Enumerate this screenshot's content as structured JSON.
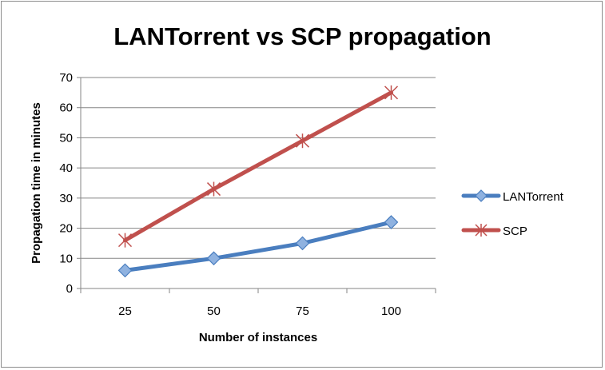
{
  "chart_data": {
    "type": "line",
    "title": "LANTorrent vs SCP propagation",
    "xlabel": "Number of instances",
    "ylabel": "Propagation time in minutes",
    "categories": [
      "25",
      "50",
      "75",
      "100"
    ],
    "ylim": [
      0,
      70
    ],
    "yticks": [
      0,
      10,
      20,
      30,
      40,
      50,
      60,
      70
    ],
    "grid": true,
    "legend_position": "right",
    "series": [
      {
        "name": "LANTorrent",
        "values": [
          6,
          10,
          15,
          22
        ],
        "color": "#4a7ebf",
        "marker": "diamond"
      },
      {
        "name": "SCP",
        "values": [
          16,
          33,
          49,
          65
        ],
        "color": "#c0504d",
        "marker": "star"
      }
    ]
  }
}
